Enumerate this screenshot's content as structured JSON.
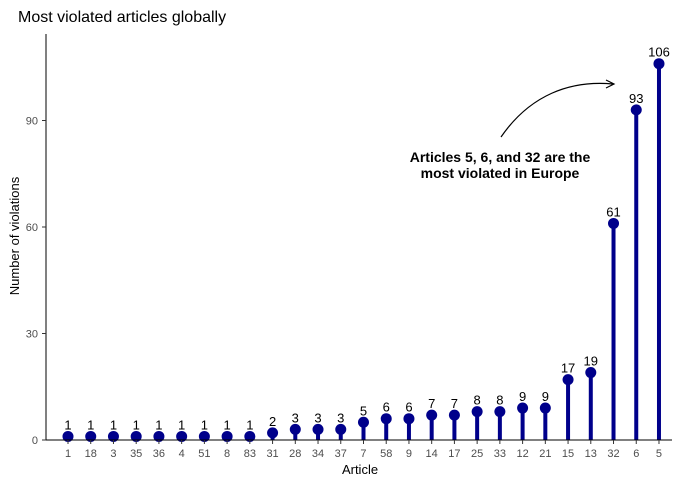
{
  "chart_data": {
    "type": "lollipop",
    "title": "Most violated articles globally",
    "xlabel": "Article",
    "ylabel": "Number of violations",
    "categories": [
      "1",
      "18",
      "3",
      "35",
      "36",
      "4",
      "51",
      "8",
      "83",
      "31",
      "28",
      "34",
      "37",
      "7",
      "58",
      "9",
      "14",
      "17",
      "25",
      "33",
      "12",
      "21",
      "15",
      "13",
      "32",
      "6",
      "5"
    ],
    "values": [
      1,
      1,
      1,
      1,
      1,
      1,
      1,
      1,
      1,
      2,
      3,
      3,
      3,
      5,
      6,
      6,
      7,
      7,
      8,
      8,
      9,
      9,
      17,
      19,
      61,
      93,
      106
    ],
    "yticks": [
      0,
      30,
      60,
      90
    ],
    "ylim": [
      0,
      112
    ],
    "grid": false,
    "annotation": {
      "lines": [
        "Articles 5, 6, and 32 are the",
        "most violated in Europe"
      ]
    },
    "colors": {
      "stem": "#00008b",
      "point": "#00008b",
      "label_low": "#8b0000",
      "label_high": "#000000",
      "axis": "#000000",
      "tick_text": "#4d4d4d"
    }
  }
}
